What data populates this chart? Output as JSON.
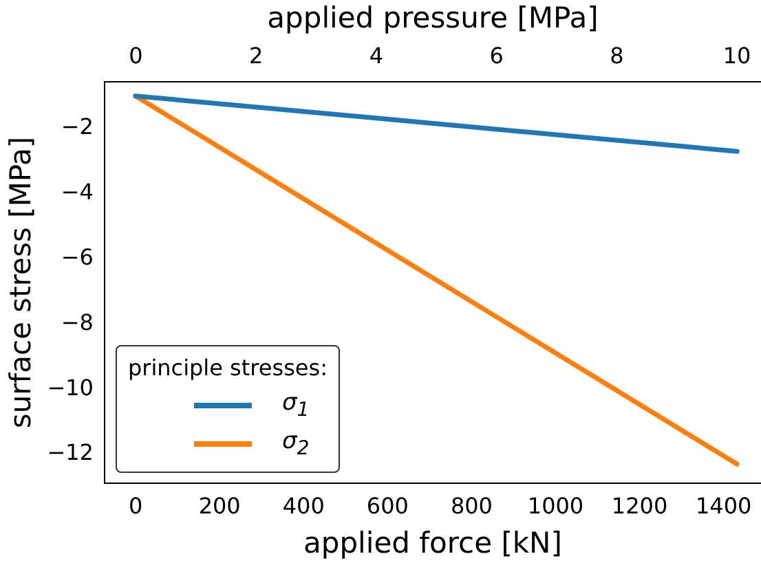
{
  "chart_data": {
    "type": "line",
    "xlabel": "applied force [kN]",
    "ylabel": "surface stress [MPa]",
    "x2label": "applied pressure [MPa]",
    "legend_title": "principle stresses:",
    "x": [
      0,
      1432
    ],
    "series": [
      {
        "name": "σ$_{1}$",
        "color": "#1f77b4",
        "values": [
          -1.0,
          -2.7
        ]
      },
      {
        "name": "σ$_{2}$",
        "color": "#ff7f0e",
        "values": [
          -1.0,
          -12.3
        ]
      }
    ],
    "xlim": [
      -74,
      1489
    ],
    "xticks": [
      0,
      200,
      400,
      600,
      800,
      1000,
      1200,
      1400
    ],
    "x2lim": [
      -0.52,
      10.4
    ],
    "x2ticks": [
      0,
      2,
      4,
      6,
      8,
      10
    ],
    "ylim": [
      -12.89,
      -0.56
    ],
    "yticks": [
      -12,
      -10,
      -8,
      -6,
      -4,
      -2
    ],
    "grid": false,
    "legend": "bottom left",
    "marker": "none",
    "line_style": "solid"
  }
}
